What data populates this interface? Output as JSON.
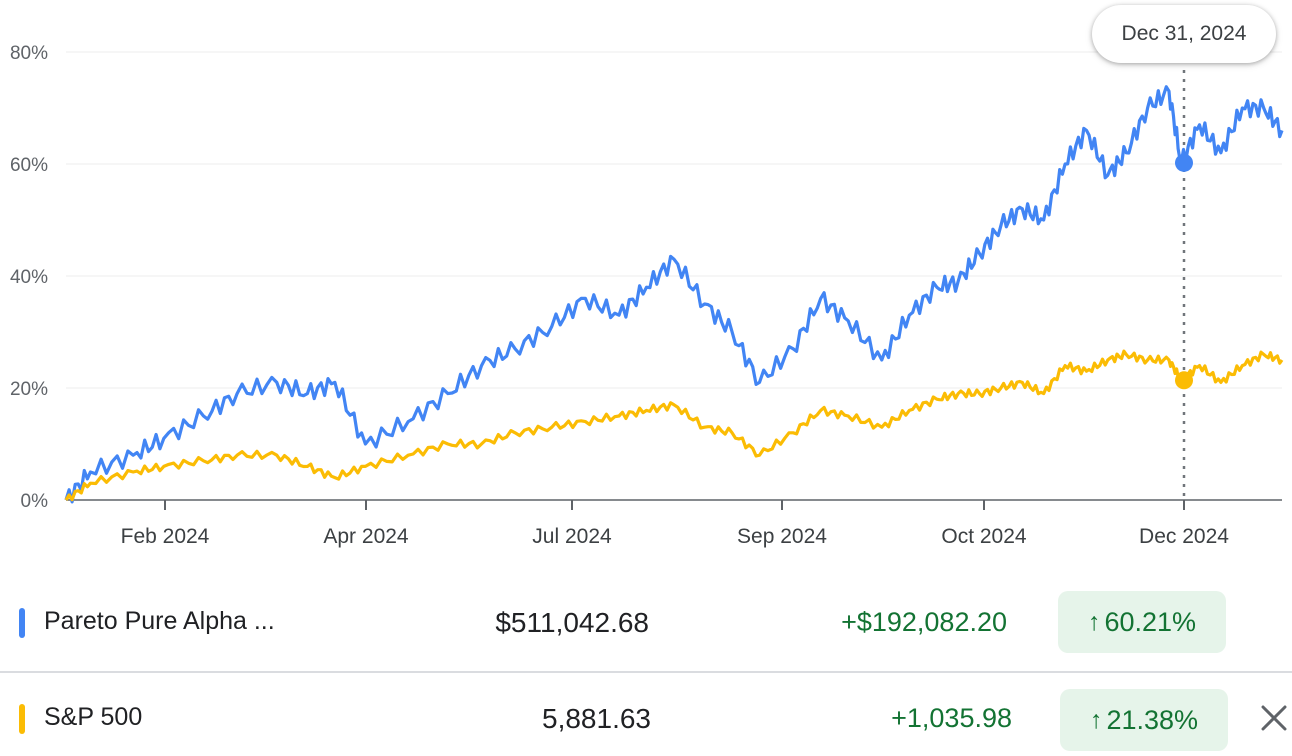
{
  "tooltip": {
    "date": "Dec 31, 2024"
  },
  "chart_data": {
    "type": "line",
    "ylim": [
      0,
      80
    ],
    "y_ticks": [
      "0%",
      "20%",
      "40%",
      "60%",
      "80%"
    ],
    "x_ticks": [
      "Feb 2024",
      "Apr 2024",
      "Jul 2024",
      "Sep 2024",
      "Oct 2024",
      "Dec 2024"
    ],
    "grid": true,
    "highlight_date": "Dec 31, 2024",
    "series": [
      {
        "name": "Pareto Pure Alpha ...",
        "color": "#4285f4",
        "x": [
          "2024-01-01",
          "2024-01-09",
          "2024-01-23",
          "2024-02-02",
          "2024-02-15",
          "2024-02-26",
          "2024-03-10",
          "2024-03-20",
          "2024-03-29",
          "2024-04-08",
          "2024-04-22",
          "2024-05-05",
          "2024-05-16",
          "2024-05-27",
          "2024-06-08",
          "2024-06-19",
          "2024-06-30",
          "2024-07-09",
          "2024-07-18",
          "2024-07-28",
          "2024-08-06",
          "2024-08-15",
          "2024-08-26",
          "2024-09-04",
          "2024-09-13",
          "2024-09-24",
          "2024-10-03",
          "2024-10-12",
          "2024-10-19",
          "2024-10-26",
          "2024-11-02",
          "2024-11-09",
          "2024-11-16",
          "2024-11-23",
          "2024-11-30",
          "2024-12-07",
          "2024-12-13",
          "2024-12-20",
          "2024-12-27",
          "2024-12-31",
          "2025-01-06",
          "2025-01-13",
          "2025-01-20",
          "2025-01-27",
          "2025-02-02"
        ],
        "y": [
          0,
          5,
          8,
          11,
          15,
          19,
          21,
          19,
          21,
          10,
          14,
          19,
          24,
          27,
          31,
          36,
          33,
          38,
          43,
          35,
          30,
          21,
          27,
          36,
          32,
          25,
          33,
          38,
          39,
          44,
          49,
          52,
          50,
          60,
          66,
          58,
          62,
          70,
          73,
          60.21,
          67,
          62,
          70,
          70,
          66
        ]
      },
      {
        "name": "S&P 500",
        "color": "#fbbc04",
        "x": [
          "2024-01-01",
          "2024-01-09",
          "2024-01-23",
          "2024-02-02",
          "2024-02-15",
          "2024-02-26",
          "2024-03-10",
          "2024-03-20",
          "2024-03-29",
          "2024-04-08",
          "2024-04-22",
          "2024-05-05",
          "2024-05-16",
          "2024-05-27",
          "2024-06-08",
          "2024-06-19",
          "2024-06-30",
          "2024-07-09",
          "2024-07-18",
          "2024-07-28",
          "2024-08-06",
          "2024-08-15",
          "2024-08-26",
          "2024-09-04",
          "2024-09-13",
          "2024-09-24",
          "2024-10-03",
          "2024-10-12",
          "2024-10-19",
          "2024-10-26",
          "2024-11-02",
          "2024-11-09",
          "2024-11-16",
          "2024-11-23",
          "2024-11-30",
          "2024-12-07",
          "2024-12-13",
          "2024-12-20",
          "2024-12-27",
          "2024-12-31",
          "2025-01-06",
          "2025-01-13",
          "2025-01-20",
          "2025-01-27",
          "2025-02-02"
        ],
        "y": [
          0,
          3,
          5,
          6,
          7,
          8,
          8,
          6,
          4,
          6,
          8,
          10,
          10,
          12,
          13,
          14,
          15,
          16,
          17,
          13,
          12,
          8,
          12,
          16,
          15,
          13,
          16,
          18,
          19,
          19,
          20,
          21,
          19,
          24,
          23,
          25,
          26,
          25,
          25,
          21.38,
          24,
          21,
          24,
          26,
          25
        ]
      }
    ]
  },
  "rows": [
    {
      "name": "Pareto Pure Alpha ...",
      "price": "$511,042.68",
      "change": "+$192,082.20",
      "percent": "60.21%",
      "color": "#4285f4"
    },
    {
      "name": "S&P 500",
      "price": "5,881.63",
      "change": "+1,035.98",
      "percent": "21.38%",
      "color": "#fbbc04"
    }
  ],
  "icons": {
    "arrow": "arrow-up-icon",
    "close": "close-icon"
  }
}
